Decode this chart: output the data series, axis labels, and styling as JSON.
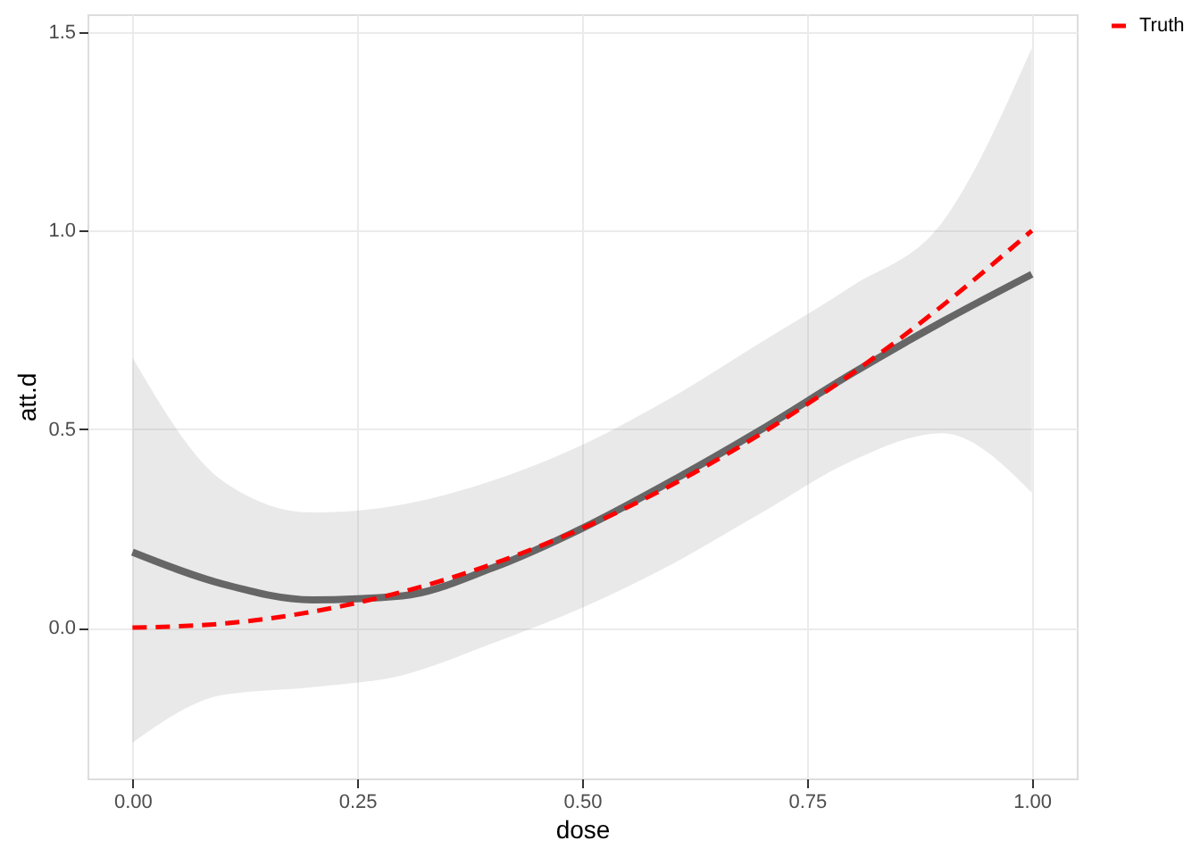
{
  "chart_data": {
    "type": "line",
    "xlabel": "dose",
    "ylabel": "att.d",
    "x": [
      0,
      0.1,
      0.2,
      0.3,
      0.4,
      0.5,
      0.6,
      0.7,
      0.8,
      0.9,
      1.0
    ],
    "series": [
      {
        "color": "#666666",
        "line_style": "solid",
        "values": [
          0.19,
          0.11,
          0.07,
          0.08,
          0.15,
          0.25,
          0.37,
          0.5,
          0.64,
          0.77,
          0.89
        ],
        "lower": [
          -0.29,
          -0.17,
          -0.15,
          -0.12,
          -0.04,
          0.05,
          0.16,
          0.29,
          0.42,
          0.49,
          0.34
        ],
        "upper": [
          0.68,
          0.37,
          0.29,
          0.31,
          0.37,
          0.46,
          0.58,
          0.72,
          0.86,
          1.02,
          1.46
        ]
      },
      {
        "name": "Truth",
        "color": "#ff0000",
        "line_style": "dashed",
        "values": [
          0,
          0.01,
          0.04,
          0.09,
          0.16,
          0.25,
          0.36,
          0.49,
          0.64,
          0.81,
          1.0
        ]
      }
    ],
    "xlim": [
      -0.05,
      1.05
    ],
    "ylim": [
      -0.38,
      1.545
    ],
    "xticks": [
      {
        "value": 0,
        "label": "0.00"
      },
      {
        "value": 0.25,
        "label": "0.25"
      },
      {
        "value": 0.5,
        "label": "0.50"
      },
      {
        "value": 0.75,
        "label": "0.75"
      },
      {
        "value": 1,
        "label": "1.00"
      }
    ],
    "yticks": [
      {
        "value": 0,
        "label": "0.0"
      },
      {
        "value": 0.5,
        "label": "0.5"
      },
      {
        "value": 1,
        "label": "1.0"
      },
      {
        "value": 1.5,
        "label": "1.5"
      }
    ],
    "grid": true,
    "legend": "right",
    "marker": "none"
  }
}
